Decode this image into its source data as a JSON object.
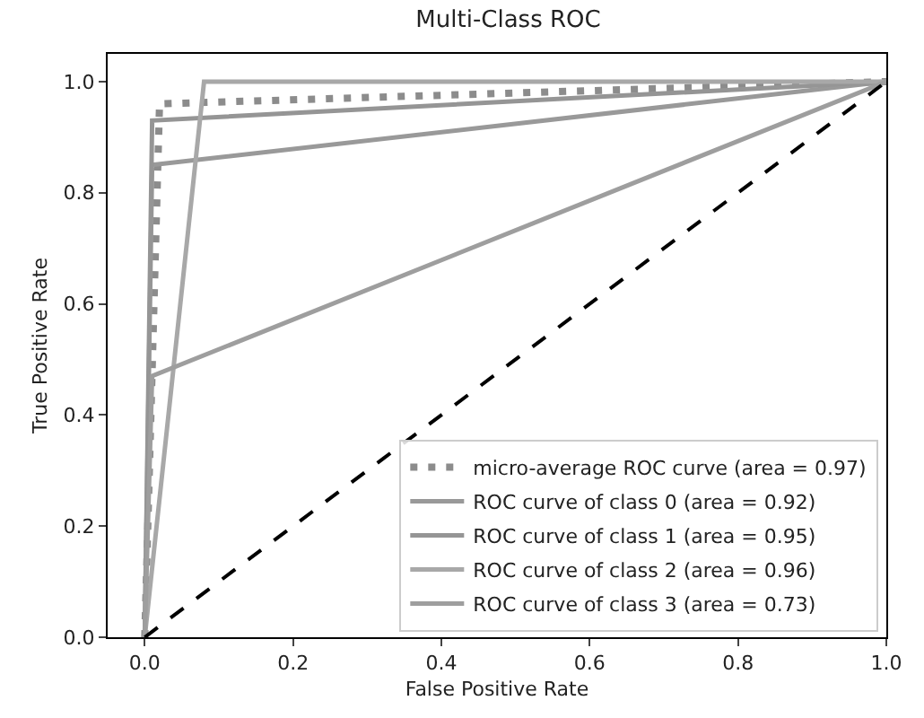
{
  "chart_data": {
    "type": "line",
    "title": "Multi-Class ROC",
    "xlabel": "False Positive Rate",
    "ylabel": "True Positive Rate",
    "xlim": [
      -0.05,
      1.0
    ],
    "ylim": [
      0,
      1.05
    ],
    "xticks": [
      {
        "value": 0,
        "label": "0.0"
      },
      0.2,
      0.4,
      0.6,
      0.8,
      {
        "value": 1,
        "label": "1.0"
      }
    ],
    "yticks": [
      {
        "value": 0,
        "label": "0.0"
      },
      0.2,
      0.4,
      0.6,
      0.8,
      {
        "value": 1,
        "label": "1.0"
      }
    ],
    "grid": false,
    "legend": "bottom right",
    "marker": "none",
    "series": [
      {
        "name": "micro-average ROC curve (area = 0.97)",
        "color": "#8c8c8c",
        "line_style": "dotted",
        "x": [
          0,
          0.02,
          1
        ],
        "values": [
          0,
          0.96,
          1
        ]
      },
      {
        "name": "ROC curve of class 0 (area = 0.92)",
        "color": "#999999",
        "x": [
          0,
          0.01,
          1
        ],
        "values": [
          0,
          0.85,
          1
        ]
      },
      {
        "name": "ROC curve of class 1 (area = 0.95)",
        "color": "#959595",
        "x": [
          0,
          0.01,
          1
        ],
        "values": [
          0,
          0.93,
          1
        ]
      },
      {
        "name": "ROC curve of class 2 (area = 0.96)",
        "color": "#a8a8a8",
        "x": [
          0,
          0.08,
          1
        ],
        "values": [
          0,
          1,
          1
        ]
      },
      {
        "name": "ROC curve of class 3 (area = 0.73)",
        "color": "#9e9e9e",
        "x": [
          0,
          0.01,
          1
        ],
        "values": [
          0,
          0.47,
          1
        ]
      },
      {
        "color": "#000000",
        "line_style": "dashed",
        "x": [
          0,
          1
        ],
        "values": [
          0,
          1
        ]
      }
    ]
  }
}
